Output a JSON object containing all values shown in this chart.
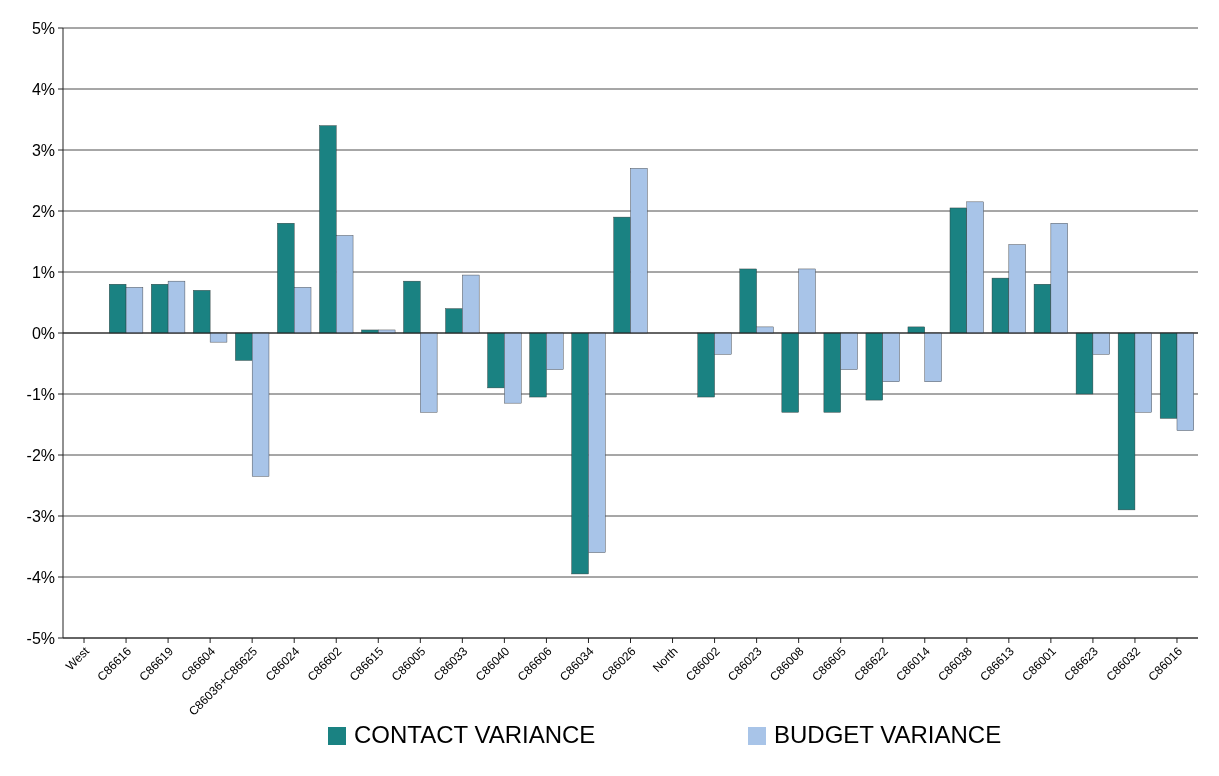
{
  "chart_data": {
    "type": "bar",
    "categories": [
      "West",
      "C86616",
      "C86619",
      "C86604",
      "C86036+C86625",
      "C86024",
      "C86602",
      "C86615",
      "C86005",
      "C86033",
      "C86040",
      "C86606",
      "C86034",
      "C86026",
      "North",
      "C86002",
      "C86023",
      "C86008",
      "C86605",
      "C86622",
      "C86014",
      "C86038",
      "C86613",
      "C86001",
      "C86623",
      "C86032",
      "C86016"
    ],
    "series": [
      {
        "name": "CONTACT VARIANCE",
        "color": "#1a8282",
        "values": [
          null,
          0.8,
          0.8,
          0.7,
          -0.45,
          1.8,
          3.4,
          0.05,
          0.85,
          0.4,
          -0.9,
          -1.05,
          -3.95,
          1.9,
          null,
          -1.05,
          1.05,
          -1.3,
          -1.3,
          -1.1,
          0.1,
          2.05,
          0.9,
          0.8,
          -1.0,
          -2.9,
          -1.4
        ]
      },
      {
        "name": "BUDGET VARIANCE",
        "color": "#a8c4e8",
        "values": [
          null,
          0.75,
          0.85,
          -0.15,
          -2.35,
          0.75,
          1.6,
          0.05,
          -1.3,
          0.95,
          -1.15,
          -0.6,
          -3.6,
          2.7,
          null,
          -0.35,
          0.1,
          1.05,
          -0.6,
          -0.8,
          -0.8,
          2.15,
          1.45,
          1.8,
          -0.35,
          -1.3,
          -1.6
        ]
      }
    ],
    "ylim": [
      -5,
      5
    ],
    "yticks": [
      {
        "value": -5,
        "label": "-5%"
      },
      {
        "value": -4,
        "label": "-4%"
      },
      {
        "value": -3,
        "label": "-3%"
      },
      {
        "value": -2,
        "label": "-2%"
      },
      {
        "value": -1,
        "label": "-1%"
      },
      {
        "value": 0,
        "label": "0%"
      },
      {
        "value": 1,
        "label": "1%"
      },
      {
        "value": 2,
        "label": "2%"
      },
      {
        "value": 3,
        "label": "3%"
      },
      {
        "value": 4,
        "label": "4%"
      },
      {
        "value": 5,
        "label": "5%"
      }
    ],
    "grid": "y",
    "legend": "bottom"
  }
}
